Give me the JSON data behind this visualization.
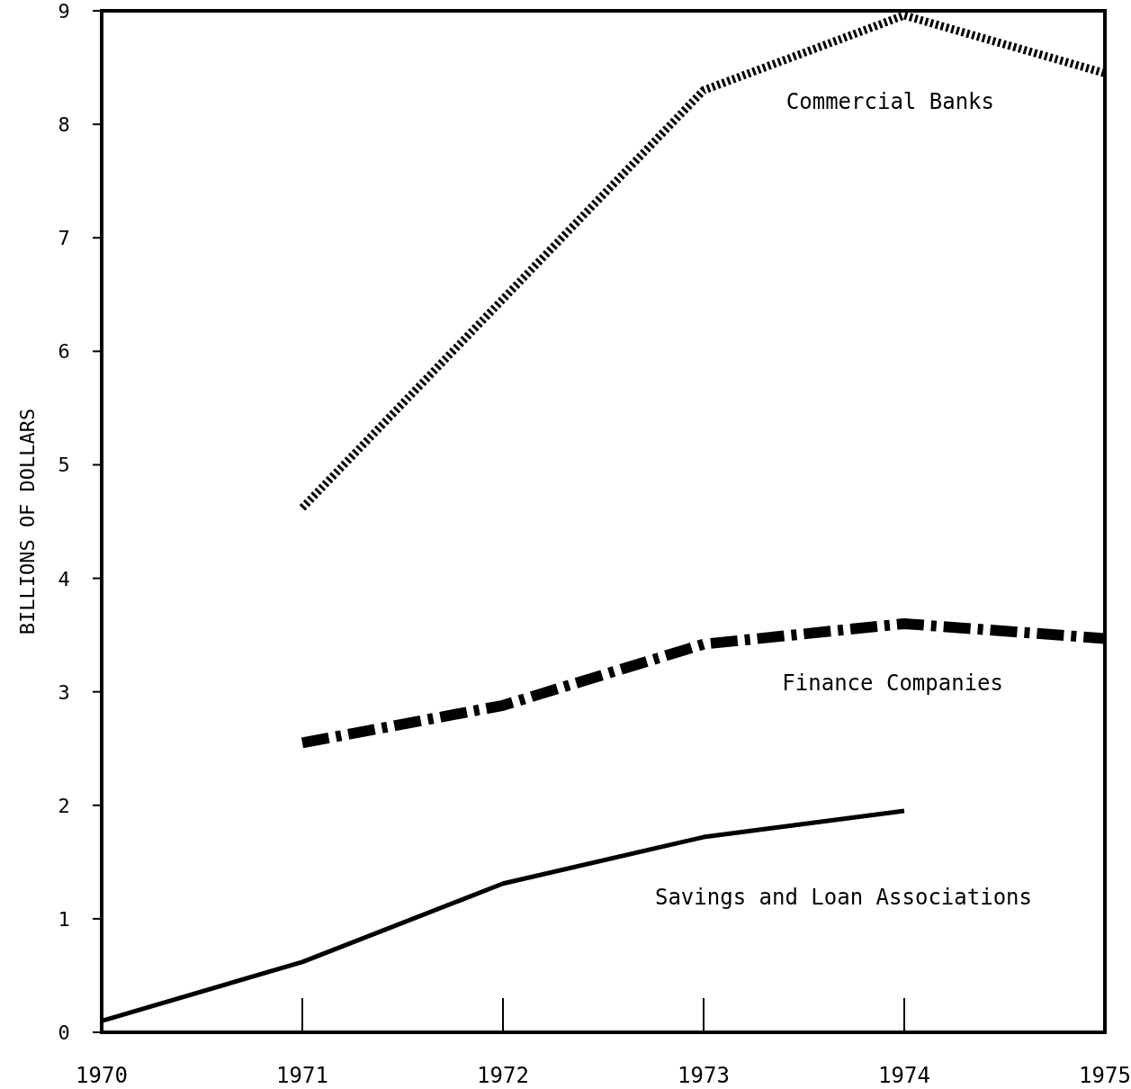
{
  "chart_data": {
    "type": "line",
    "ylabel": "BILLIONS OF DOLLARS",
    "xlim": [
      1970,
      1975
    ],
    "xticks": [
      1970,
      1971,
      1972,
      1973,
      1974,
      1975
    ],
    "ylim": [
      0,
      9
    ],
    "yticks": [
      0,
      1,
      2,
      3,
      4,
      5,
      6,
      7,
      8,
      9
    ],
    "grid": false,
    "series": [
      {
        "name": "Commercial Banks",
        "color": "#000000",
        "line_style": "dotted",
        "x": [
          1971,
          1973,
          1974,
          1975
        ],
        "values": [
          4.62,
          8.3,
          8.96,
          8.45
        ]
      },
      {
        "name": "Finance Companies",
        "color": "#000000",
        "line_style": "dashed",
        "x": [
          1971,
          1972,
          1973,
          1974,
          1975
        ],
        "values": [
          2.55,
          2.88,
          3.42,
          3.6,
          3.47
        ]
      },
      {
        "name": "Savings and Loan Associations",
        "color": "#000000",
        "line_style": "solid",
        "x": [
          1970,
          1971,
          1972,
          1973,
          1974
        ],
        "values": [
          0.1,
          0.62,
          1.31,
          1.72,
          1.95
        ]
      }
    ]
  }
}
